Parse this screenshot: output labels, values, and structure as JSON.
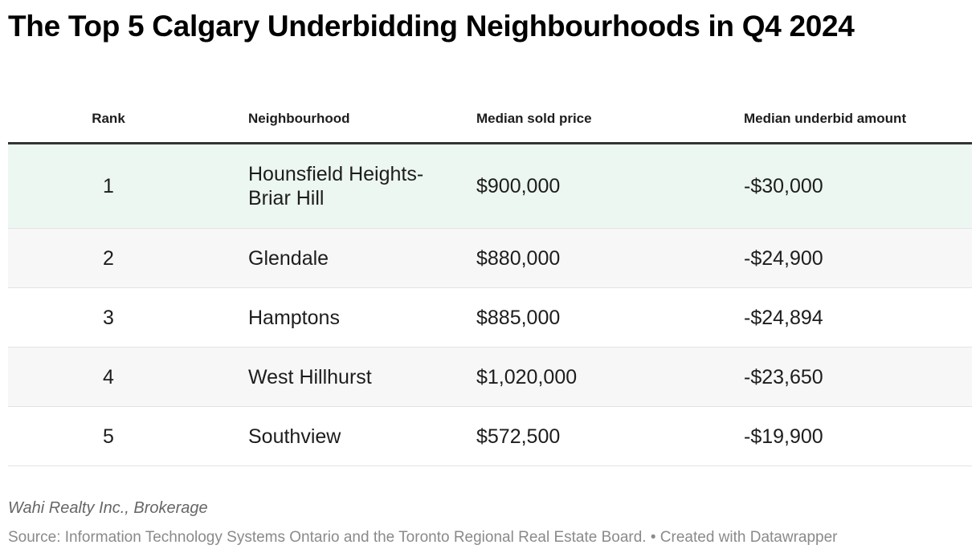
{
  "title": "The Top 5 Calgary Underbidding Neighbourhoods in Q4 2024",
  "chart_data": {
    "type": "table",
    "title": "The Top 5 Calgary Underbidding Neighbourhoods in Q4 2024",
    "columns": [
      "Rank",
      "Neighbourhood",
      "Median sold price",
      "Median underbid amount"
    ],
    "rows": [
      {
        "rank": "1",
        "neighbourhood": "Hounsfield Heights-Briar Hill",
        "price": "$900,000",
        "underbid": "-$30,000"
      },
      {
        "rank": "2",
        "neighbourhood": "Glendale",
        "price": "$880,000",
        "underbid": "-$24,900"
      },
      {
        "rank": "3",
        "neighbourhood": "Hamptons",
        "price": "$885,000",
        "underbid": "-$24,894"
      },
      {
        "rank": "4",
        "neighbourhood": "West Hillhurst",
        "price": "$1,020,000",
        "underbid": "-$23,650"
      },
      {
        "rank": "5",
        "neighbourhood": "Southview",
        "price": "$572,500",
        "underbid": "-$19,900"
      }
    ],
    "highlight_color": "#edf7f1"
  },
  "byline": "Wahi Realty Inc., Brokerage",
  "source": "Source: Information Technology Systems Ontario and the Toronto Regional Real Estate Board. • Created with Datawrapper"
}
